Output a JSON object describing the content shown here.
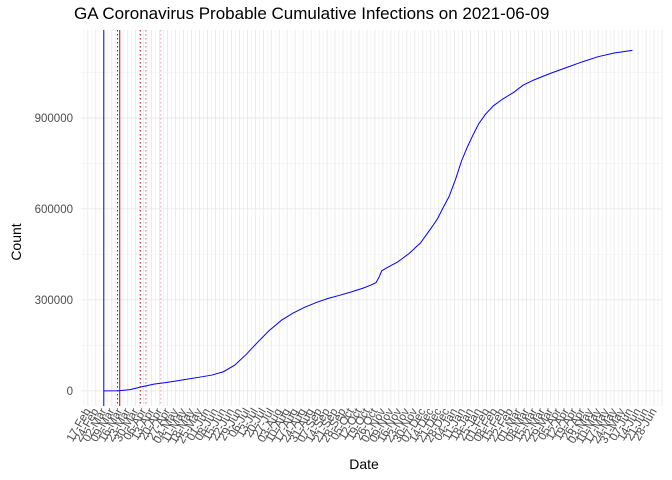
{
  "chart_data": {
    "type": "line",
    "title": "GA Coronavirus Probable Cumulative Infections on 2021-06-09",
    "xlabel": "Date",
    "ylabel": "Count",
    "ylim": [
      -50000,
      1190000
    ],
    "y_ticks": [
      0,
      300000,
      600000,
      900000
    ],
    "x_range": [
      "2020-02-11",
      "2021-07-05"
    ],
    "x_tick_labels": [
      "17-Feb",
      "24-Feb",
      "02-Mar",
      "09-Mar",
      "16-Mar",
      "23-Mar",
      "30-Mar",
      "06-Apr",
      "13-Apr",
      "20-Apr",
      "27-Apr",
      "04-May",
      "11-May",
      "18-May",
      "25-May",
      "01-Jun",
      "08-Jun",
      "15-Jun",
      "22-Jun",
      "29-Jun",
      "06-Jul",
      "13-Jul",
      "20-Jul",
      "27-Jul",
      "03-Aug",
      "10-Aug",
      "17-Aug",
      "24-Aug",
      "31-Aug",
      "07-Sep",
      "14-Sep",
      "21-Sep",
      "28-Sep",
      "05-Oct",
      "12-Oct",
      "19-Oct",
      "26-Oct",
      "02-Nov",
      "09-Nov",
      "16-Nov",
      "23-Nov",
      "30-Nov",
      "07-Dec",
      "14-Dec",
      "21-Dec",
      "28-Dec",
      "04-Jan",
      "11-Jan",
      "18-Jan",
      "25-Jan",
      "01-Feb",
      "08-Feb",
      "15-Feb",
      "22-Feb",
      "01-Mar",
      "08-Mar",
      "15-Mar",
      "22-Mar",
      "29-Mar",
      "05-Apr",
      "12-Apr",
      "19-Apr",
      "26-Apr",
      "03-May",
      "10-May",
      "17-May",
      "24-May",
      "31-May",
      "07-Jun",
      "14-Jun",
      "21-Jun",
      "28-Jun"
    ],
    "grid": true,
    "legend": "none",
    "series": [
      {
        "color": "#0000ff",
        "points": [
          [
            "2020-03-02",
            0
          ],
          [
            "2020-03-15",
            500
          ],
          [
            "2020-03-25",
            4000
          ],
          [
            "2020-04-05",
            14000
          ],
          [
            "2020-04-15",
            22000
          ],
          [
            "2020-04-25",
            27000
          ],
          [
            "2020-05-05",
            33000
          ],
          [
            "2020-05-15",
            39000
          ],
          [
            "2020-05-25",
            45000
          ],
          [
            "2020-06-05",
            52000
          ],
          [
            "2020-06-15",
            63000
          ],
          [
            "2020-06-25",
            85000
          ],
          [
            "2020-07-05",
            120000
          ],
          [
            "2020-07-15",
            160000
          ],
          [
            "2020-07-25",
            198000
          ],
          [
            "2020-08-05",
            233000
          ],
          [
            "2020-08-15",
            256000
          ],
          [
            "2020-08-25",
            275000
          ],
          [
            "2020-09-05",
            292000
          ],
          [
            "2020-09-15",
            305000
          ],
          [
            "2020-09-25",
            315000
          ],
          [
            "2020-10-05",
            326000
          ],
          [
            "2020-10-15",
            338000
          ],
          [
            "2020-10-22",
            348000
          ],
          [
            "2020-10-27",
            357000
          ],
          [
            "2020-10-30",
            378000
          ],
          [
            "2020-11-01",
            396000
          ],
          [
            "2020-11-05",
            405000
          ],
          [
            "2020-11-15",
            425000
          ],
          [
            "2020-11-25",
            453000
          ],
          [
            "2020-12-05",
            488000
          ],
          [
            "2020-12-15",
            540000
          ],
          [
            "2020-12-20",
            568000
          ],
          [
            "2020-12-25",
            605000
          ],
          [
            "2020-12-30",
            640000
          ],
          [
            "2021-01-05",
            700000
          ],
          [
            "2021-01-10",
            758000
          ],
          [
            "2021-01-15",
            803000
          ],
          [
            "2021-01-20",
            843000
          ],
          [
            "2021-01-25",
            880000
          ],
          [
            "2021-01-31",
            912000
          ],
          [
            "2021-02-07",
            940000
          ],
          [
            "2021-02-15",
            962000
          ],
          [
            "2021-02-25",
            985000
          ],
          [
            "2021-03-05",
            1008000
          ],
          [
            "2021-03-15",
            1026000
          ],
          [
            "2021-03-29",
            1047000
          ],
          [
            "2021-04-12",
            1066000
          ],
          [
            "2021-04-26",
            1085000
          ],
          [
            "2021-05-10",
            1102000
          ],
          [
            "2021-05-24",
            1114000
          ],
          [
            "2021-06-09",
            1123000
          ]
        ]
      }
    ],
    "vlines": [
      {
        "date": "2020-03-02",
        "color": "#0000ff",
        "style": "solid"
      },
      {
        "date": "2020-03-14",
        "color": "#cc0000",
        "style": "dotted"
      },
      {
        "date": "2020-03-16",
        "color": "#cc0000",
        "style": "solid"
      },
      {
        "date": "2020-04-03",
        "color": "#cc0000",
        "style": "dotted"
      },
      {
        "date": "2020-04-08",
        "color": "#e06070",
        "style": "dotted"
      },
      {
        "date": "2020-04-21",
        "color": "#ff9aa8",
        "style": "dotted"
      }
    ]
  }
}
